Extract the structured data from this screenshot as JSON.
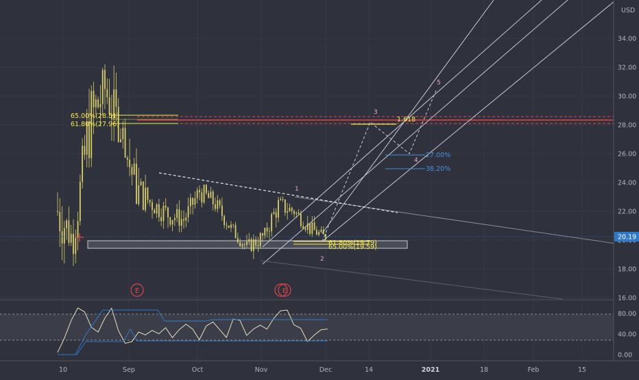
{
  "chart_data": {
    "type": "candlestick",
    "currency_label": "USD",
    "last_price": "20.19",
    "price_axis": {
      "range": [
        16,
        36
      ],
      "ticks": [
        "34.00",
        "32.00",
        "30.00",
        "28.00",
        "26.00",
        "24.00",
        "22.00",
        "20.00",
        "18.00",
        "16.00"
      ]
    },
    "time_axis": {
      "ticks": [
        "10",
        "Sep",
        "Oct",
        "Nov",
        "Dec",
        "14",
        "2021",
        "18",
        "Feb",
        "15"
      ]
    },
    "fib_retracement_labels": [
      "65.00%(28.51)",
      "61.80%(27.96)"
    ],
    "fib_lower_labels": [
      "61.80%(19.79)",
      "65.00%(19.59)"
    ],
    "fib_extension_labels": [
      "1.618",
      "27.00%",
      "38.20%"
    ],
    "wave_labels": [
      "1",
      "2",
      "3",
      "4",
      "5"
    ],
    "earnings_markers": [
      "E",
      "E"
    ],
    "resistance_levels": [
      28.51,
      27.96
    ],
    "support_zone": [
      19.4,
      20.0
    ],
    "triangle_upper_line": {
      "from": [
        "late Sep",
        24.6
      ],
      "to": [
        "mid Dec",
        21.8
      ]
    },
    "price_series_approx": [
      {
        "t": "Aug 03",
        "low": 17.5,
        "high": 26.8,
        "close": 22
      },
      {
        "t": "Aug 10",
        "low": 18.2,
        "high": 22.5,
        "close": 20
      },
      {
        "t": "Aug 17",
        "low": 19.5,
        "high": 30.5,
        "close": 28
      },
      {
        "t": "Aug 24",
        "low": 25.5,
        "high": 32.2,
        "close": 30.5
      },
      {
        "t": "Aug 31",
        "low": 27.0,
        "high": 34.5,
        "close": 27.5
      },
      {
        "t": "Sep 07",
        "low": 22.5,
        "high": 28.5,
        "close": 23.5
      },
      {
        "t": "Sep 14",
        "low": 21.5,
        "high": 24.5,
        "close": 22.5
      },
      {
        "t": "Sep 21",
        "low": 20.5,
        "high": 23.8,
        "close": 21.8
      },
      {
        "t": "Sep 28",
        "low": 20.3,
        "high": 22.8,
        "close": 21.4
      },
      {
        "t": "Oct 05",
        "low": 20.8,
        "high": 23.8,
        "close": 23.4
      },
      {
        "t": "Oct 12",
        "low": 21.5,
        "high": 24.0,
        "close": 22.5
      },
      {
        "t": "Oct 19",
        "low": 20.3,
        "high": 22.5,
        "close": 20.8
      },
      {
        "t": "Oct 26",
        "low": 19.0,
        "high": 21.0,
        "close": 19.5
      },
      {
        "t": "Nov 02",
        "low": 17.8,
        "high": 20.5,
        "close": 20.2
      },
      {
        "t": "Nov 09",
        "low": 20.0,
        "high": 23.0,
        "close": 22.4
      },
      {
        "t": "Nov 16",
        "low": 21.2,
        "high": 23.1,
        "close": 22.0
      },
      {
        "t": "Nov 23",
        "low": 20.3,
        "high": 22.5,
        "close": 20.8
      },
      {
        "t": "Nov 30",
        "low": 19.8,
        "high": 21.1,
        "close": 20.19
      }
    ],
    "projection_path": [
      {
        "label": "2",
        "price": 19.8
      },
      {
        "label": "3",
        "price": 28.0
      },
      {
        "label": "4",
        "price": 26.0
      },
      {
        "label": "5",
        "price": 30.2
      }
    ],
    "oscillator": {
      "axis_ticks": [
        "80.00",
        "40.00",
        "0.00"
      ],
      "range": [
        0,
        100
      ],
      "overbought": 80,
      "oversold": 20
    }
  },
  "colors": {
    "background": "#2f323d",
    "candle": "#d9cf6a",
    "fib": "#f5e94a",
    "resistance": "#e0454a",
    "channel": "#c9cbd1",
    "wave_label": "#e9a6d8",
    "extension_blue": "#4a8fd6",
    "earnings": "#e0454a",
    "last_price": "#2f79c9",
    "osc_line": "#e8e2c0",
    "osc_band": "#2f79c9"
  }
}
